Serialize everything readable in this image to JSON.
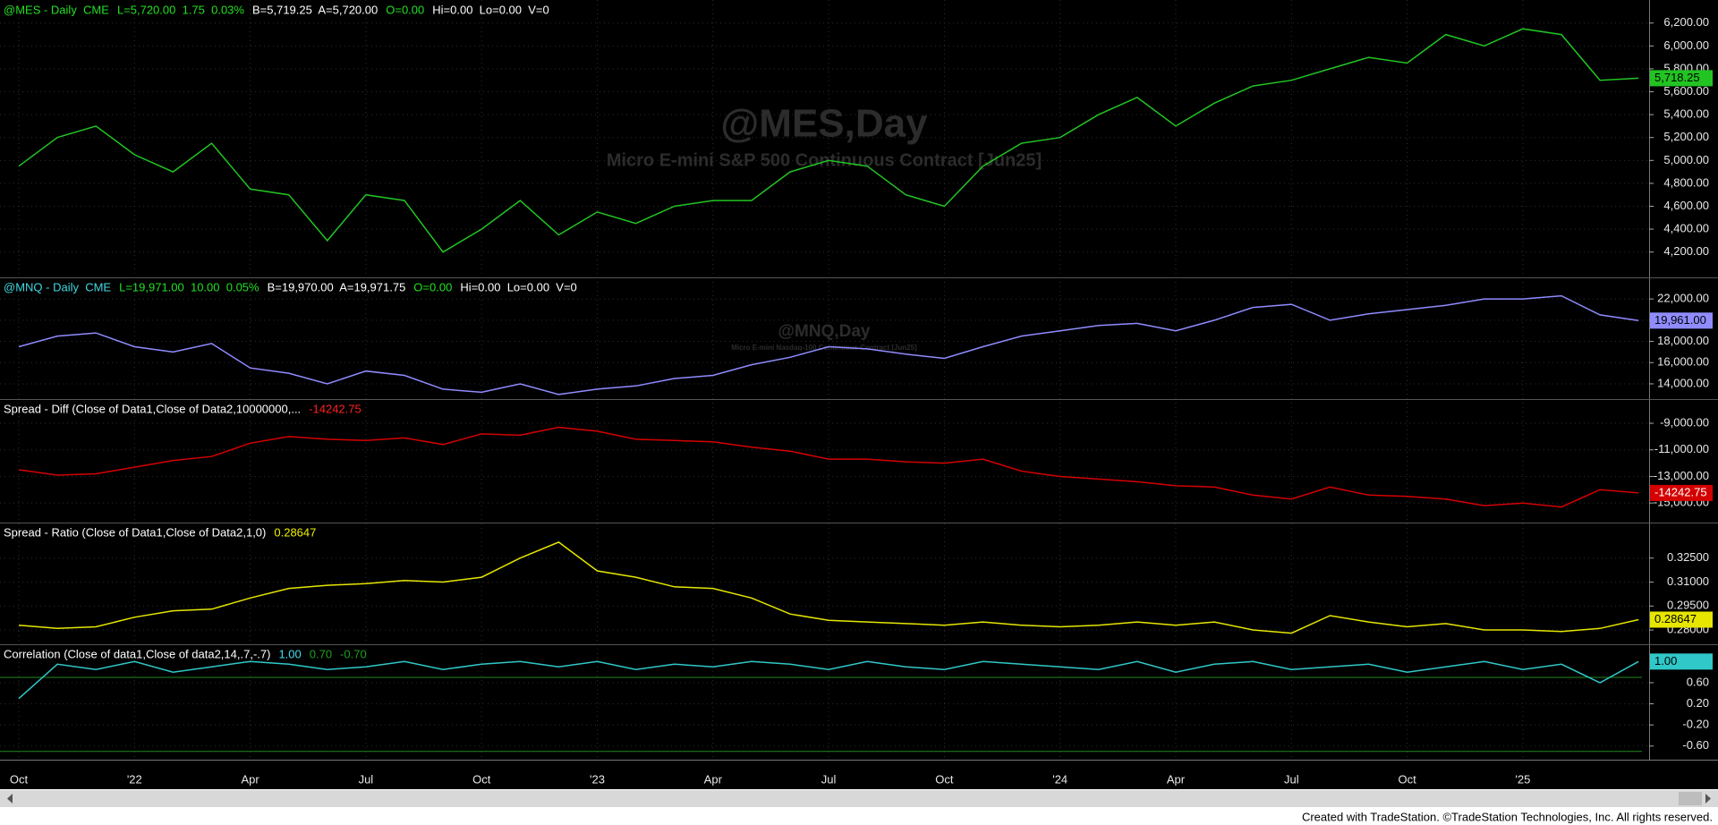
{
  "x_axis": {
    "categories": [
      "Oct",
      null,
      null,
      "'22",
      null,
      null,
      "Apr",
      null,
      null,
      "Jul",
      null,
      null,
      "Oct",
      null,
      null,
      "'23",
      null,
      null,
      "Apr",
      null,
      null,
      "Jul",
      null,
      null,
      "Oct",
      null,
      null,
      "'24",
      null,
      null,
      "Apr",
      null,
      null,
      "Jul",
      null,
      null,
      "Oct",
      null,
      null,
      "'25",
      null,
      null,
      null
    ]
  },
  "chart_data": [
    {
      "type": "line",
      "color": "#22c422",
      "header": [
        {
          "text": "@MES - Daily  CME",
          "color": "#22e022"
        },
        {
          "text": "L=5,720.00  1.75  0.03%",
          "color": "#22e022"
        },
        {
          "text": "B=5,719.25  A=5,720.00",
          "color": "#ffffff"
        },
        {
          "text": "O=0.00",
          "color": "#22e022"
        },
        {
          "text": "Hi=0.00  Lo=0.00  V=0",
          "color": "#ffffff"
        }
      ],
      "watermark_title": "@MES,Day",
      "watermark_subtitle": "Micro E-mini S&P 500 Continuous Contract [Jun25]",
      "ylim": [
        4010,
        6370
      ],
      "yticks": [
        {
          "value": 4200,
          "label": "4,200.00"
        },
        {
          "value": 4400,
          "label": "4,400.00"
        },
        {
          "value": 4600,
          "label": "4,600.00"
        },
        {
          "value": 4800,
          "label": "4,800.00"
        },
        {
          "value": 5000,
          "label": "5,000.00"
        },
        {
          "value": 5200,
          "label": "5,200.00"
        },
        {
          "value": 5400,
          "label": "5,400.00"
        },
        {
          "value": 5600,
          "label": "5,600.00"
        },
        {
          "value": 5800,
          "label": "5,800.00"
        },
        {
          "value": 6000,
          "label": "6,000.00"
        },
        {
          "value": 6200,
          "label": "6,200.00"
        }
      ],
      "values": [
        4950,
        5200,
        5300,
        5050,
        4900,
        5150,
        4750,
        4700,
        4300,
        4700,
        4650,
        4200,
        4400,
        4650,
        4350,
        4550,
        4450,
        4600,
        4650,
        4650,
        4900,
        5000,
        4950,
        4700,
        4600,
        4950,
        5150,
        5200,
        5400,
        5550,
        5300,
        5500,
        5650,
        5700,
        5800,
        5900,
        5850,
        6100,
        6000,
        6150,
        6100,
        5700,
        5718.25
      ],
      "last_value": {
        "value": 5718.25,
        "label": "5,718.25"
      }
    },
    {
      "type": "line",
      "color": "#8f8cff",
      "header": [
        {
          "text": "@MNQ - Daily  CME",
          "color": "#40d8e0"
        },
        {
          "text": "L=19,971.00  10.00  0.05%",
          "color": "#22e022"
        },
        {
          "text": "B=19,970.00  A=19,971.75",
          "color": "#ffffff"
        },
        {
          "text": "O=0.00",
          "color": "#22e022"
        },
        {
          "text": "Hi=0.00  Lo=0.00  V=0",
          "color": "#ffffff"
        }
      ],
      "watermark_title": "@MNQ,Day",
      "watermark_subtitle": "Micro E-mini Nasdaq-100 Continuous Contract [Jun25]",
      "ylim": [
        12900,
        23700
      ],
      "yticks": [
        {
          "value": 14000,
          "label": "14,000.00"
        },
        {
          "value": 16000,
          "label": "16,000.00"
        },
        {
          "value": 18000,
          "label": "18,000.00"
        },
        {
          "value": 20000,
          "label": "20,000.00"
        },
        {
          "value": 22000,
          "label": "22,000.00"
        }
      ],
      "values": [
        17500,
        18500,
        18800,
        17500,
        17000,
        17800,
        15500,
        15000,
        14000,
        15200,
        14800,
        13500,
        13200,
        14000,
        13000,
        13500,
        13800,
        14500,
        14800,
        15800,
        16500,
        17500,
        17300,
        16800,
        16400,
        17500,
        18500,
        19000,
        19500,
        19700,
        19000,
        20000,
        21200,
        21500,
        20000,
        20600,
        21000,
        21400,
        22000,
        22000,
        22300,
        20500,
        19961
      ],
      "last_value": {
        "value": 19961,
        "label": "19,961.00"
      }
    },
    {
      "type": "line",
      "color": "#d40000",
      "header": [
        {
          "text": "Spread - Diff (Close of Data1,Close of Data2,10000000,...",
          "color": "#ffffff"
        },
        {
          "text": "-14242.75",
          "color": "#ff2020"
        }
      ],
      "ylim": [
        -16200,
        -7450
      ],
      "yticks": [
        {
          "value": -15000,
          "label": "-15,000.00"
        },
        {
          "value": -13000,
          "label": "-13,000.00"
        },
        {
          "value": -11000,
          "label": "-11,000.00"
        },
        {
          "value": -9000,
          "label": "-9,000.00"
        }
      ],
      "values": [
        -12500,
        -12900,
        -12800,
        -12300,
        -11800,
        -11500,
        -10500,
        -10000,
        -10200,
        -10300,
        -10100,
        -10600,
        -9800,
        -9900,
        -9300,
        -9600,
        -10200,
        -10300,
        -10400,
        -10800,
        -11100,
        -11700,
        -11700,
        -11900,
        -12000,
        -11700,
        -12600,
        -13000,
        -13200,
        -13400,
        -13700,
        -13800,
        -14400,
        -14700,
        -13800,
        -14400,
        -14500,
        -14700,
        -15200,
        -15000,
        -15300,
        -14000,
        -14242.75
      ],
      "last_value": {
        "value": -14242.75,
        "label": "-14242.75"
      }
    },
    {
      "type": "line",
      "color": "#e6e600",
      "header": [
        {
          "text": "Spread - Ratio (Close of Data1,Close of Data2,1,0)",
          "color": "#ffffff"
        },
        {
          "text": "0.28647",
          "color": "#f0f000"
        }
      ],
      "ylim": [
        0.2733,
        0.345
      ],
      "yticks": [
        {
          "value": 0.28,
          "label": "0.28000"
        },
        {
          "value": 0.295,
          "label": "0.29500"
        },
        {
          "value": 0.31,
          "label": "0.31000"
        },
        {
          "value": 0.325,
          "label": "0.32500"
        }
      ],
      "values": [
        0.283,
        0.281,
        0.282,
        0.288,
        0.292,
        0.293,
        0.3,
        0.306,
        0.308,
        0.309,
        0.311,
        0.31,
        0.313,
        0.325,
        0.335,
        0.317,
        0.313,
        0.307,
        0.306,
        0.3,
        0.29,
        0.286,
        0.285,
        0.284,
        0.283,
        0.285,
        0.283,
        0.282,
        0.283,
        0.285,
        0.283,
        0.285,
        0.28,
        0.278,
        0.289,
        0.285,
        0.282,
        0.284,
        0.28,
        0.28,
        0.279,
        0.281,
        0.28647
      ],
      "last_value": {
        "value": 0.28647,
        "label": "0.28647"
      }
    },
    {
      "type": "line",
      "color": "#30c8c8",
      "header": [
        {
          "text": "Correlation (Close of data1,Close of data2,14,.7,-.7)",
          "color": "#ffffff"
        },
        {
          "text": "1.00",
          "color": "#40e0f0"
        },
        {
          "text": "0.70",
          "color": "#20a020"
        },
        {
          "text": "-0.70",
          "color": "#20a020"
        }
      ],
      "ylim": [
        -0.79,
        1.26
      ],
      "yticks": [
        {
          "value": -0.6,
          "label": "-0.60"
        },
        {
          "value": -0.2,
          "label": "-0.20"
        },
        {
          "value": 0.2,
          "label": "0.20"
        },
        {
          "value": 0.6,
          "label": "0.60"
        }
      ],
      "levels": [
        0.7,
        -0.7
      ],
      "level_color": "#1f8a1f",
      "values": [
        0.3,
        0.95,
        0.85,
        1,
        0.8,
        0.9,
        1,
        0.95,
        0.85,
        0.9,
        1,
        0.85,
        0.95,
        1,
        0.9,
        1,
        0.85,
        0.95,
        0.9,
        1,
        0.95,
        0.85,
        1,
        0.9,
        0.85,
        1,
        0.95,
        0.9,
        0.85,
        1,
        0.8,
        0.95,
        1,
        0.85,
        0.9,
        0.95,
        0.8,
        0.9,
        1,
        0.85,
        0.95,
        0.6,
        1
      ],
      "last_value": {
        "value": 1,
        "label": "1.00"
      }
    }
  ],
  "footer": "Created with TradeStation. ©TradeStation Technologies, Inc. All rights reserved."
}
